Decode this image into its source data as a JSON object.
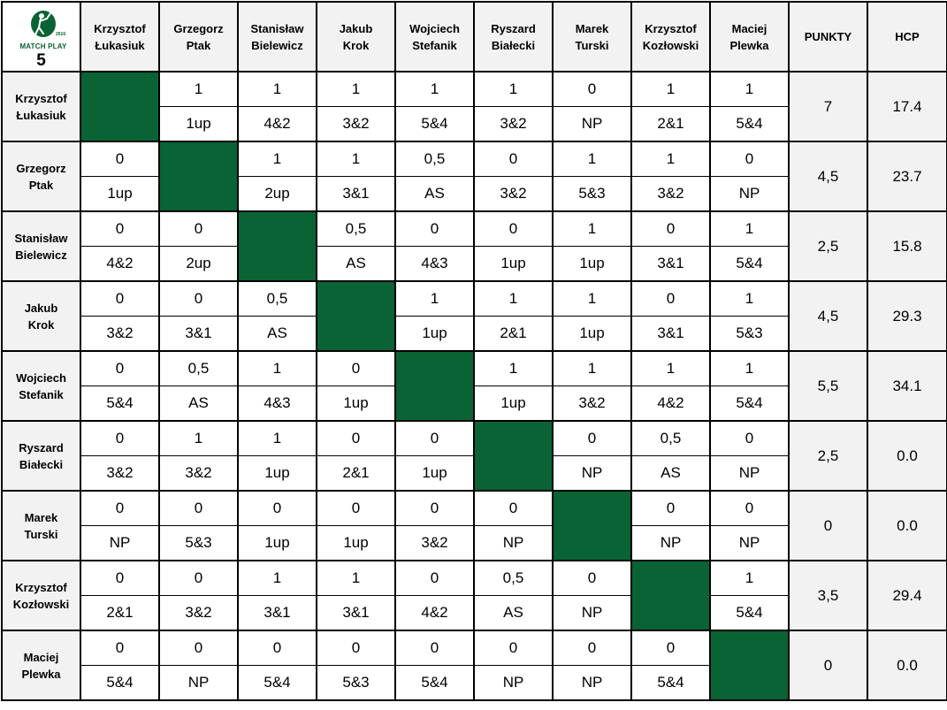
{
  "logo": {
    "text": "MATCH PLAY",
    "year": "2016",
    "number": "5"
  },
  "headers": {
    "players": [
      "Krzysztof\nŁukasiuk",
      "Grzegorz\nPtak",
      "Stanisław\nBielewicz",
      "Jakub\nKrok",
      "Wojciech\nStefanik",
      "Ryszard\nBiałecki",
      "Marek\nTurski",
      "Krzysztof\nKozłowski",
      "Maciej\nPlewka"
    ],
    "points": "PUNKTY",
    "hcp": "HCP"
  },
  "colors": {
    "diagonal": "#0a6334",
    "header_bg": "#f2f2f2",
    "border": "#000000"
  },
  "rows": [
    {
      "name": "Krzysztof\nŁukasiuk",
      "points": "7",
      "hcp": "17.4",
      "cells": [
        null,
        {
          "p": "1",
          "r": "1up"
        },
        {
          "p": "1",
          "r": "4&2"
        },
        {
          "p": "1",
          "r": "3&2"
        },
        {
          "p": "1",
          "r": "5&4"
        },
        {
          "p": "1",
          "r": "3&2"
        },
        {
          "p": "0",
          "r": "NP"
        },
        {
          "p": "1",
          "r": "2&1"
        },
        {
          "p": "1",
          "r": "5&4"
        }
      ]
    },
    {
      "name": "Grzegorz\nPtak",
      "points": "4,5",
      "hcp": "23.7",
      "cells": [
        {
          "p": "0",
          "r": "1up"
        },
        null,
        {
          "p": "1",
          "r": "2up"
        },
        {
          "p": "1",
          "r": "3&1"
        },
        {
          "p": "0,5",
          "r": "AS"
        },
        {
          "p": "0",
          "r": "3&2"
        },
        {
          "p": "1",
          "r": "5&3"
        },
        {
          "p": "1",
          "r": "3&2"
        },
        {
          "p": "0",
          "r": "NP"
        }
      ]
    },
    {
      "name": "Stanisław\nBielewicz",
      "points": "2,5",
      "hcp": "15.8",
      "cells": [
        {
          "p": "0",
          "r": "4&2"
        },
        {
          "p": "0",
          "r": "2up"
        },
        null,
        {
          "p": "0,5",
          "r": "AS"
        },
        {
          "p": "0",
          "r": "4&3"
        },
        {
          "p": "0",
          "r": "1up"
        },
        {
          "p": "1",
          "r": "1up"
        },
        {
          "p": "0",
          "r": "3&1"
        },
        {
          "p": "1",
          "r": "5&4"
        }
      ]
    },
    {
      "name": "Jakub\nKrok",
      "points": "4,5",
      "hcp": "29.3",
      "cells": [
        {
          "p": "0",
          "r": "3&2"
        },
        {
          "p": "0",
          "r": "3&1"
        },
        {
          "p": "0,5",
          "r": "AS"
        },
        null,
        {
          "p": "1",
          "r": "1up"
        },
        {
          "p": "1",
          "r": "2&1"
        },
        {
          "p": "1",
          "r": "1up"
        },
        {
          "p": "0",
          "r": "3&1"
        },
        {
          "p": "1",
          "r": "5&3"
        }
      ]
    },
    {
      "name": "Wojciech\nStefanik",
      "points": "5,5",
      "hcp": "34.1",
      "cells": [
        {
          "p": "0",
          "r": "5&4"
        },
        {
          "p": "0,5",
          "r": "AS"
        },
        {
          "p": "1",
          "r": "4&3"
        },
        {
          "p": "0",
          "r": "1up"
        },
        null,
        {
          "p": "1",
          "r": "1up"
        },
        {
          "p": "1",
          "r": "3&2"
        },
        {
          "p": "1",
          "r": "4&2"
        },
        {
          "p": "1",
          "r": "5&4"
        }
      ]
    },
    {
      "name": "Ryszard\nBiałecki",
      "points": "2,5",
      "hcp": "0.0",
      "cells": [
        {
          "p": "0",
          "r": "3&2"
        },
        {
          "p": "1",
          "r": "3&2"
        },
        {
          "p": "1",
          "r": "1up"
        },
        {
          "p": "0",
          "r": "2&1"
        },
        {
          "p": "0",
          "r": "1up"
        },
        null,
        {
          "p": "0",
          "r": "NP"
        },
        {
          "p": "0,5",
          "r": "AS"
        },
        {
          "p": "0",
          "r": "NP"
        }
      ]
    },
    {
      "name": "Marek\nTurski",
      "points": "0",
      "hcp": "0.0",
      "cells": [
        {
          "p": "0",
          "r": "NP"
        },
        {
          "p": "0",
          "r": "5&3"
        },
        {
          "p": "0",
          "r": "1up"
        },
        {
          "p": "0",
          "r": "1up"
        },
        {
          "p": "0",
          "r": "3&2"
        },
        {
          "p": "0",
          "r": "NP"
        },
        null,
        {
          "p": "0",
          "r": "NP"
        },
        {
          "p": "0",
          "r": "NP"
        }
      ]
    },
    {
      "name": "Krzysztof\nKozłowski",
      "points": "3,5",
      "hcp": "29.4",
      "cells": [
        {
          "p": "0",
          "r": "2&1"
        },
        {
          "p": "0",
          "r": "3&2"
        },
        {
          "p": "1",
          "r": "3&1"
        },
        {
          "p": "1",
          "r": "3&1"
        },
        {
          "p": "0",
          "r": "4&2"
        },
        {
          "p": "0,5",
          "r": "AS"
        },
        {
          "p": "0",
          "r": "NP"
        },
        null,
        {
          "p": "1",
          "r": "5&4"
        }
      ]
    },
    {
      "name": "Maciej\nPlewka",
      "points": "0",
      "hcp": "0.0",
      "cells": [
        {
          "p": "0",
          "r": "5&4"
        },
        {
          "p": "0",
          "r": "NP"
        },
        {
          "p": "0",
          "r": "5&4"
        },
        {
          "p": "0",
          "r": "5&3"
        },
        {
          "p": "0",
          "r": "5&4"
        },
        {
          "p": "0",
          "r": "NP"
        },
        {
          "p": "0",
          "r": "NP"
        },
        {
          "p": "0",
          "r": "5&4"
        },
        null
      ]
    }
  ]
}
